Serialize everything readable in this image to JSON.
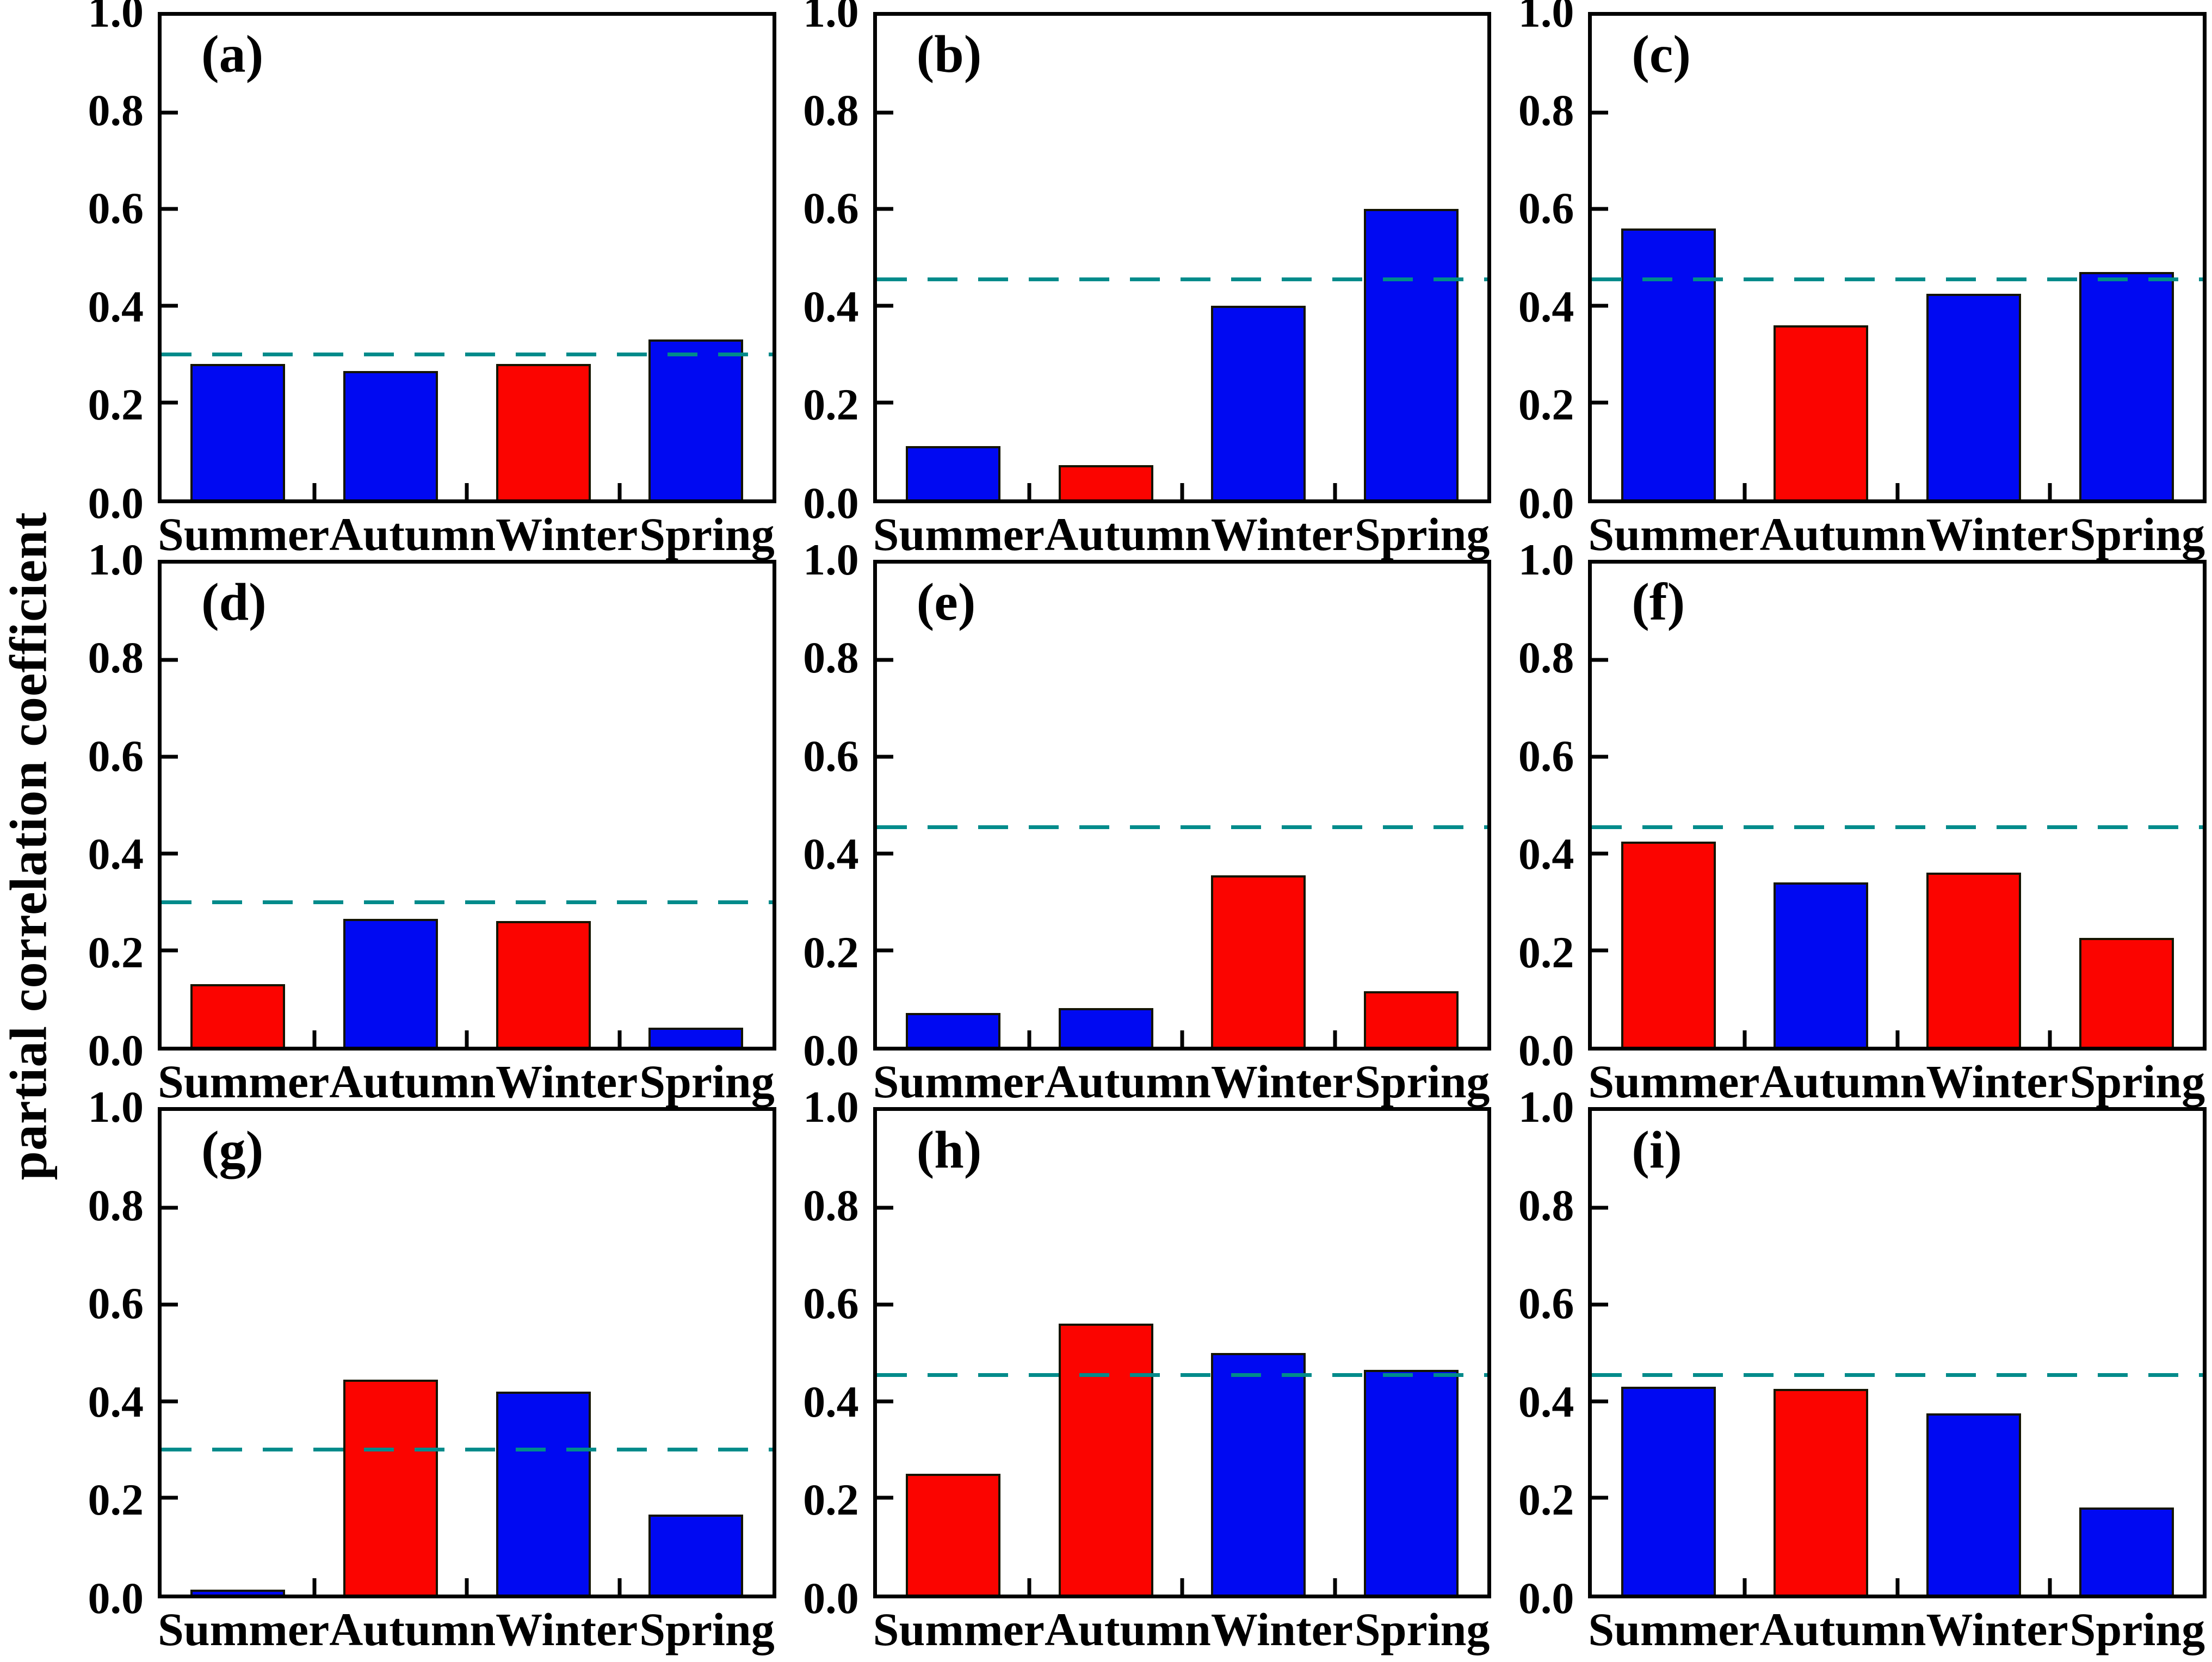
{
  "figure": {
    "ylabel": "partial correlation coefficient",
    "ytick_labels": [
      "0.0",
      "0.2",
      "0.4",
      "0.6",
      "0.8",
      "1.0"
    ],
    "colors": {
      "blue": "#0009F2",
      "red": "#FB0400",
      "threshold_dash": "#008B8B",
      "axis": "#000000"
    }
  },
  "chart_data": [
    {
      "type": "bar",
      "panel": "(a)",
      "categories": [
        "Summer",
        "Autumn",
        "Winter",
        "Spring"
      ],
      "values": [
        0.28,
        0.265,
        0.28,
        0.33
      ],
      "bar_colors": [
        "blue",
        "blue",
        "red",
        "blue"
      ],
      "threshold_line": 0.3,
      "ylim": [
        0.0,
        1.0
      ],
      "yticks": [
        0.0,
        0.2,
        0.4,
        0.6,
        0.8,
        1.0
      ],
      "grid": "off",
      "legend": "none"
    },
    {
      "type": "bar",
      "panel": "(b)",
      "categories": [
        "Summer",
        "Autumn",
        "Winter",
        "Spring"
      ],
      "values": [
        0.11,
        0.07,
        0.4,
        0.6
      ],
      "bar_colors": [
        "blue",
        "red",
        "blue",
        "blue"
      ],
      "threshold_line": 0.455,
      "ylim": [
        0.0,
        1.0
      ],
      "yticks": [
        0.0,
        0.2,
        0.4,
        0.6,
        0.8,
        1.0
      ],
      "grid": "off",
      "legend": "none"
    },
    {
      "type": "bar",
      "panel": "(c)",
      "categories": [
        "Summer",
        "Autumn",
        "Winter",
        "Spring"
      ],
      "values": [
        0.56,
        0.36,
        0.425,
        0.47
      ],
      "bar_colors": [
        "blue",
        "red",
        "blue",
        "blue"
      ],
      "threshold_line": 0.455,
      "ylim": [
        0.0,
        1.0
      ],
      "yticks": [
        0.0,
        0.2,
        0.4,
        0.6,
        0.8,
        1.0
      ],
      "grid": "off",
      "legend": "none"
    },
    {
      "type": "bar",
      "panel": "(d)",
      "categories": [
        "Summer",
        "Autumn",
        "Winter",
        "Spring"
      ],
      "values": [
        0.13,
        0.265,
        0.26,
        0.04
      ],
      "bar_colors": [
        "red",
        "blue",
        "red",
        "blue"
      ],
      "threshold_line": 0.3,
      "ylim": [
        0.0,
        1.0
      ],
      "yticks": [
        0.0,
        0.2,
        0.4,
        0.6,
        0.8,
        1.0
      ],
      "grid": "off",
      "legend": "none"
    },
    {
      "type": "bar",
      "panel": "(e)",
      "categories": [
        "Summer",
        "Autumn",
        "Winter",
        "Spring"
      ],
      "values": [
        0.07,
        0.08,
        0.355,
        0.115
      ],
      "bar_colors": [
        "blue",
        "blue",
        "red",
        "red"
      ],
      "threshold_line": 0.455,
      "ylim": [
        0.0,
        1.0
      ],
      "yticks": [
        0.0,
        0.2,
        0.4,
        0.6,
        0.8,
        1.0
      ],
      "grid": "off",
      "legend": "none"
    },
    {
      "type": "bar",
      "panel": "(f)",
      "categories": [
        "Summer",
        "Autumn",
        "Winter",
        "Spring"
      ],
      "values": [
        0.425,
        0.34,
        0.36,
        0.225
      ],
      "bar_colors": [
        "red",
        "blue",
        "red",
        "red"
      ],
      "threshold_line": 0.455,
      "ylim": [
        0.0,
        1.0
      ],
      "yticks": [
        0.0,
        0.2,
        0.4,
        0.6,
        0.8,
        1.0
      ],
      "grid": "off",
      "legend": "none"
    },
    {
      "type": "bar",
      "panel": "(g)",
      "categories": [
        "Summer",
        "Autumn",
        "Winter",
        "Spring"
      ],
      "values": [
        0.01,
        0.445,
        0.42,
        0.165
      ],
      "bar_colors": [
        "blue",
        "red",
        "blue",
        "blue"
      ],
      "threshold_line": 0.3,
      "ylim": [
        0.0,
        1.0
      ],
      "yticks": [
        0.0,
        0.2,
        0.4,
        0.6,
        0.8,
        1.0
      ],
      "grid": "off",
      "legend": "none"
    },
    {
      "type": "bar",
      "panel": "(h)",
      "categories": [
        "Summer",
        "Autumn",
        "Winter",
        "Spring"
      ],
      "values": [
        0.25,
        0.56,
        0.5,
        0.465
      ],
      "bar_colors": [
        "red",
        "red",
        "blue",
        "blue"
      ],
      "threshold_line": 0.455,
      "ylim": [
        0.0,
        1.0
      ],
      "yticks": [
        0.0,
        0.2,
        0.4,
        0.6,
        0.8,
        1.0
      ],
      "grid": "off",
      "legend": "none"
    },
    {
      "type": "bar",
      "panel": "(i)",
      "categories": [
        "Summer",
        "Autumn",
        "Winter",
        "Spring"
      ],
      "values": [
        0.43,
        0.425,
        0.375,
        0.18
      ],
      "bar_colors": [
        "blue",
        "red",
        "blue",
        "blue"
      ],
      "threshold_line": 0.455,
      "ylim": [
        0.0,
        1.0
      ],
      "yticks": [
        0.0,
        0.2,
        0.4,
        0.6,
        0.8,
        1.0
      ],
      "grid": "off",
      "legend": "none"
    }
  ]
}
